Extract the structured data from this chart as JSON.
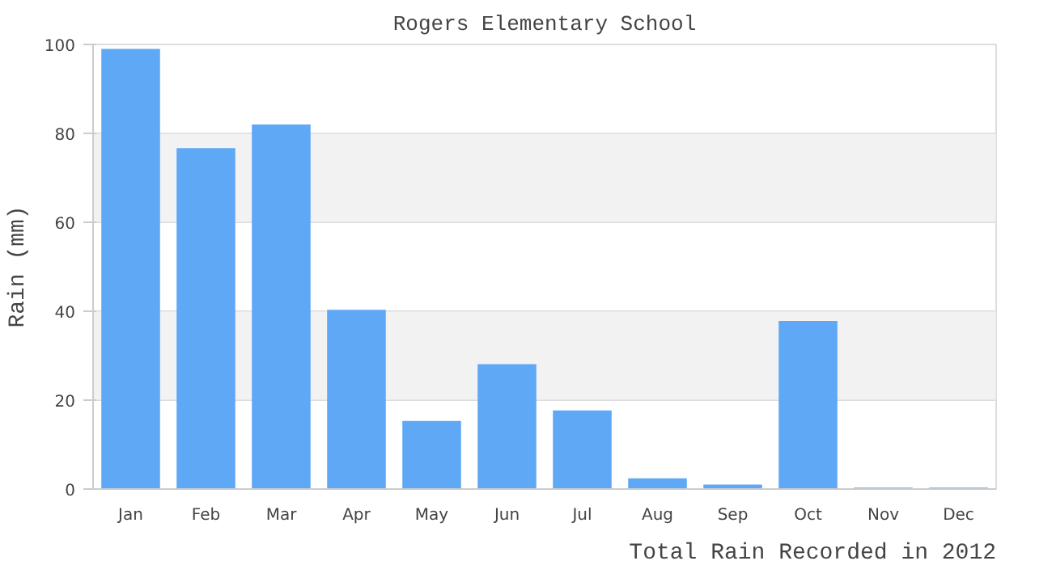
{
  "chart_data": {
    "type": "bar",
    "title": "Rogers Elementary School",
    "xlabel": "Total Rain Recorded in 2012",
    "ylabel": "Rain (mm)",
    "categories": [
      "Jan",
      "Feb",
      "Mar",
      "Apr",
      "May",
      "Jun",
      "Jul",
      "Aug",
      "Sep",
      "Oct",
      "Nov",
      "Dec"
    ],
    "values": [
      99,
      76.7,
      82,
      40.3,
      15.3,
      28.1,
      17.7,
      2.4,
      1,
      37.8,
      0.3,
      0.3
    ],
    "color": "#5fa8f5",
    "ylim": [
      0,
      100
    ],
    "yticks": [
      0,
      20,
      40,
      60,
      80,
      100
    ],
    "grid": "y",
    "bands": [
      {
        "axis": "y",
        "from": 20,
        "to": 40,
        "color": "#f2f2f2"
      },
      {
        "axis": "y",
        "from": 60,
        "to": 80,
        "color": "#f2f2f2"
      }
    ]
  }
}
